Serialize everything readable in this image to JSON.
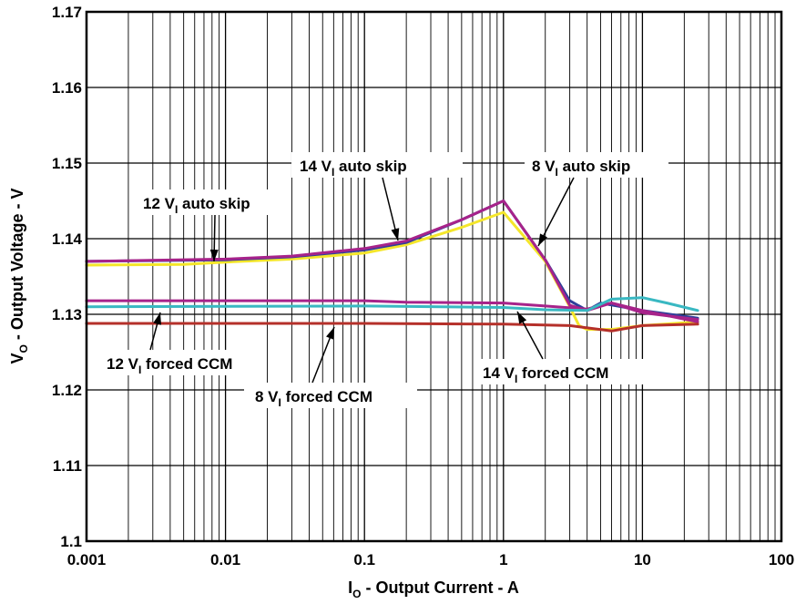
{
  "chart_data": {
    "type": "line",
    "x_scale": "log",
    "xlim": [
      0.001,
      100
    ],
    "ylim": [
      1.1,
      1.17
    ],
    "grid": true,
    "xlabel": {
      "main": "I",
      "sub": "O",
      "rest": " - Output Current - A"
    },
    "ylabel": {
      "main": "V",
      "sub": "O",
      "rest": " - Output Voltage - V"
    },
    "x_ticks": [
      {
        "value": 0.001,
        "label": "0.001"
      },
      {
        "value": 0.01,
        "label": "0.01"
      },
      {
        "value": 0.1,
        "label": "0.1"
      },
      {
        "value": 1,
        "label": "1"
      },
      {
        "value": 10,
        "label": "10"
      },
      {
        "value": 100,
        "label": "100"
      }
    ],
    "y_ticks": [
      {
        "value": 1.1,
        "label": "1.1"
      },
      {
        "value": 1.11,
        "label": "1.11"
      },
      {
        "value": 1.12,
        "label": "1.12"
      },
      {
        "value": 1.13,
        "label": "1.13"
      },
      {
        "value": 1.14,
        "label": "1.14"
      },
      {
        "value": 1.15,
        "label": "1.15"
      },
      {
        "value": 1.16,
        "label": "1.16"
      },
      {
        "value": 1.17,
        "label": "1.17"
      }
    ],
    "series": [
      {
        "color": "#f4e62a",
        "points": [
          [
            0.001,
            1.1365
          ],
          [
            0.005,
            1.1366
          ],
          [
            0.01,
            1.1369
          ],
          [
            0.03,
            1.1373
          ],
          [
            0.1,
            1.1381
          ],
          [
            0.2,
            1.1392
          ],
          [
            0.5,
            1.1415
          ],
          [
            1,
            1.1435
          ],
          [
            2,
            1.137
          ],
          [
            3,
            1.131
          ],
          [
            3.5,
            1.1285
          ],
          [
            4,
            1.128
          ],
          [
            6,
            1.128
          ],
          [
            10,
            1.1285
          ],
          [
            25,
            1.129
          ]
        ]
      },
      {
        "color": "#2f3f9a",
        "points": [
          [
            0.001,
            1.137
          ],
          [
            0.01,
            1.1372
          ],
          [
            0.03,
            1.1376
          ],
          [
            0.1,
            1.1385
          ],
          [
            0.2,
            1.1395
          ],
          [
            0.5,
            1.1425
          ],
          [
            1,
            1.145
          ],
          [
            2,
            1.1372
          ],
          [
            3,
            1.1318
          ],
          [
            4,
            1.1305
          ],
          [
            5,
            1.1315
          ],
          [
            10,
            1.1305
          ],
          [
            25,
            1.1295
          ]
        ]
      },
      {
        "color": "#a7238a",
        "points": [
          [
            0.001,
            1.137
          ],
          [
            0.01,
            1.1373
          ],
          [
            0.03,
            1.1377
          ],
          [
            0.1,
            1.1387
          ],
          [
            0.2,
            1.1397
          ],
          [
            0.5,
            1.1425
          ],
          [
            1,
            1.145
          ],
          [
            2,
            1.1372
          ],
          [
            3,
            1.1312
          ],
          [
            4,
            1.1305
          ],
          [
            6,
            1.1315
          ],
          [
            10,
            1.1305
          ],
          [
            25,
            1.129
          ]
        ]
      },
      {
        "color": "#a7238a",
        "points": [
          [
            0.001,
            1.1318
          ],
          [
            0.1,
            1.1318
          ],
          [
            0.2,
            1.1316
          ],
          [
            1,
            1.1315
          ],
          [
            2,
            1.1311
          ],
          [
            4,
            1.1307
          ],
          [
            6,
            1.1315
          ],
          [
            10,
            1.1302
          ],
          [
            25,
            1.1293
          ]
        ]
      },
      {
        "color": "#39b8c2",
        "points": [
          [
            0.001,
            1.131
          ],
          [
            0.1,
            1.1311
          ],
          [
            1,
            1.1309
          ],
          [
            2,
            1.1306
          ],
          [
            4,
            1.1305
          ],
          [
            6,
            1.132
          ],
          [
            10,
            1.1322
          ],
          [
            15,
            1.1315
          ],
          [
            25,
            1.1305
          ]
        ]
      },
      {
        "color": "#b5302a",
        "points": [
          [
            0.001,
            1.1288
          ],
          [
            0.1,
            1.1288
          ],
          [
            1,
            1.1287
          ],
          [
            3,
            1.1285
          ],
          [
            6,
            1.1278
          ],
          [
            10,
            1.1285
          ],
          [
            25,
            1.1287
          ]
        ]
      }
    ],
    "annotations": [
      {
        "main": "14 V",
        "sub": "I",
        "rest": " auto skip"
      },
      {
        "main": "8 V",
        "sub": "I",
        "rest": " auto skip"
      },
      {
        "main": "12 V",
        "sub": "I",
        "rest": " auto skip"
      },
      {
        "main": "12 V",
        "sub": "I",
        "rest": " forced CCM"
      },
      {
        "main": "8 V",
        "sub": "I",
        "rest": " forced CCM"
      },
      {
        "main": "14 V",
        "sub": "I",
        "rest": " forced CCM"
      }
    ]
  }
}
